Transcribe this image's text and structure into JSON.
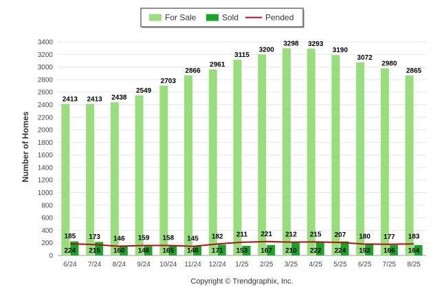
{
  "chart_data": {
    "type": "bar",
    "title": "",
    "xlabel": "",
    "ylabel": "Number of Homes",
    "ylim": [
      0,
      3400
    ],
    "y_ticks": [
      0,
      200,
      400,
      600,
      800,
      1000,
      1200,
      1400,
      1600,
      1800,
      2000,
      2200,
      2400,
      2600,
      2800,
      3000,
      3200,
      3400
    ],
    "grid": true,
    "legend_position": "top-center",
    "categories": [
      "6/24",
      "7/24",
      "8/24",
      "9/24",
      "10/24",
      "11/24",
      "12/24",
      "1/25",
      "2/25",
      "3/25",
      "4/25",
      "5/25",
      "6/25",
      "7/25",
      "8/25"
    ],
    "series": [
      {
        "name": "For Sale",
        "kind": "bar",
        "color": "#99dd7f",
        "values": [
          2413,
          2413,
          2438,
          2549,
          2703,
          2866,
          2961,
          3115,
          3200,
          3298,
          3293,
          3190,
          3072,
          2980,
          2865
        ]
      },
      {
        "name": "Sold",
        "kind": "bar",
        "color": "#1aa52a",
        "values": [
          224,
          215,
          160,
          146,
          165,
          146,
          171,
          153,
          167,
          210,
          222,
          224,
          192,
          166,
          164
        ]
      },
      {
        "name": "Pended",
        "kind": "line",
        "color": "#b01010",
        "values": [
          185,
          173,
          146,
          159,
          158,
          145,
          182,
          211,
          221,
          212,
          215,
          207,
          180,
          177,
          183
        ]
      }
    ]
  },
  "footer": {
    "copyright": "Copyright © Trendgraphix, Inc."
  }
}
